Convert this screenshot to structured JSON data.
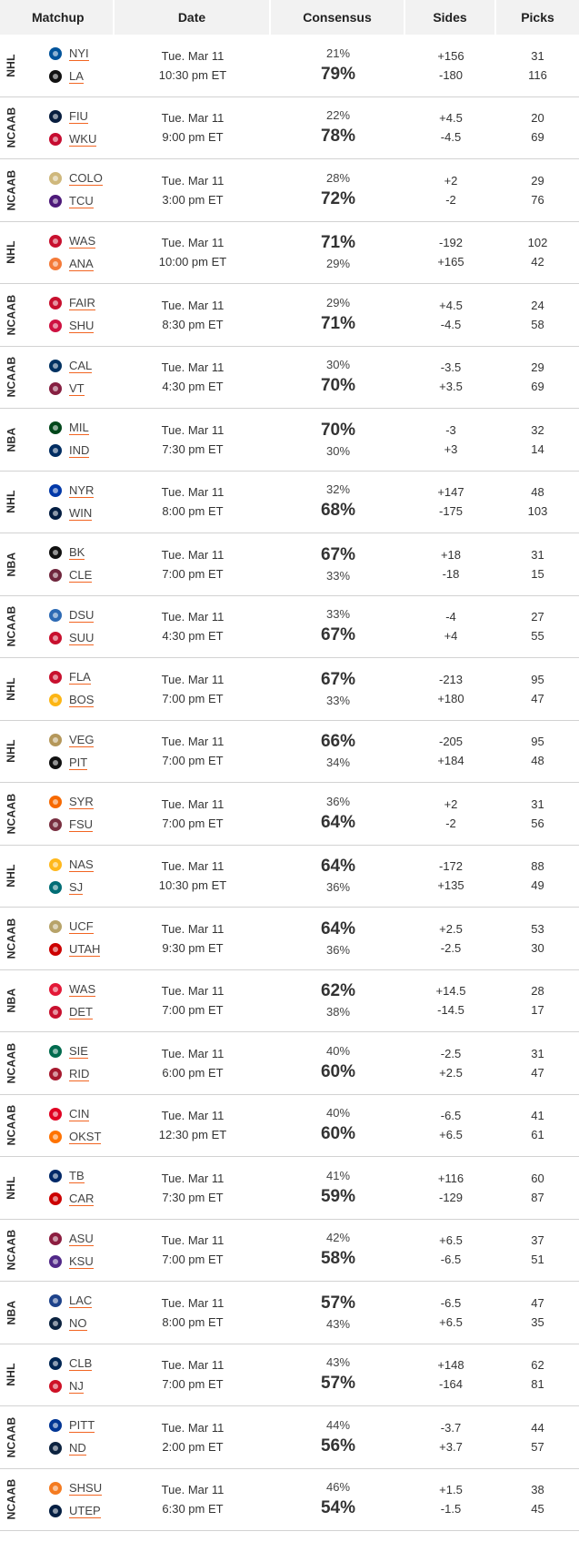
{
  "header": {
    "matchup": "Matchup",
    "date": "Date",
    "consensus": "Consensus",
    "sides": "Sides",
    "picks": "Picks"
  },
  "rows": [
    {
      "league": "NHL",
      "team1": {
        "abbr": "NYI",
        "logo": "islanders-logo",
        "color": "#00539b"
      },
      "team2": {
        "abbr": "LA",
        "logo": "kings-logo",
        "color": "#111111"
      },
      "day": "Tue. Mar 11",
      "time": "10:30 pm ET",
      "pct1": "21%",
      "pct2": "79%",
      "side1": "+156",
      "side2": "-180",
      "picks1": "31",
      "picks2": "116"
    },
    {
      "league": "NCAAB",
      "team1": {
        "abbr": "FIU",
        "logo": "fiu-logo",
        "color": "#081e3f"
      },
      "team2": {
        "abbr": "WKU",
        "logo": "wku-logo",
        "color": "#c60c30"
      },
      "day": "Tue. Mar 11",
      "time": "9:00 pm ET",
      "pct1": "22%",
      "pct2": "78%",
      "side1": "+4.5",
      "side2": "-4.5",
      "picks1": "20",
      "picks2": "69"
    },
    {
      "league": "NCAAB",
      "team1": {
        "abbr": "COLO",
        "logo": "colorado-logo",
        "color": "#cfb87c"
      },
      "team2": {
        "abbr": "TCU",
        "logo": "tcu-logo",
        "color": "#4d1979"
      },
      "day": "Tue. Mar 11",
      "time": "3:00 pm ET",
      "pct1": "28%",
      "pct2": "72%",
      "side1": "+2",
      "side2": "-2",
      "picks1": "29",
      "picks2": "76"
    },
    {
      "league": "NHL",
      "team1": {
        "abbr": "WAS",
        "logo": "capitals-logo",
        "color": "#c8102e"
      },
      "team2": {
        "abbr": "ANA",
        "logo": "ducks-logo",
        "color": "#f47a38"
      },
      "day": "Tue. Mar 11",
      "time": "10:00 pm ET",
      "pct1": "71%",
      "pct2": "29%",
      "side1": "-192",
      "side2": "+165",
      "picks1": "102",
      "picks2": "42"
    },
    {
      "league": "NCAAB",
      "team1": {
        "abbr": "FAIR",
        "logo": "fairfield-logo",
        "color": "#c8102e"
      },
      "team2": {
        "abbr": "SHU",
        "logo": "sacred-heart-logo",
        "color": "#ce1141"
      },
      "day": "Tue. Mar 11",
      "time": "8:30 pm ET",
      "pct1": "29%",
      "pct2": "71%",
      "side1": "+4.5",
      "side2": "-4.5",
      "picks1": "24",
      "picks2": "58"
    },
    {
      "league": "NCAAB",
      "team1": {
        "abbr": "CAL",
        "logo": "cal-logo",
        "color": "#003262"
      },
      "team2": {
        "abbr": "VT",
        "logo": "virginia-tech-logo",
        "color": "#861f41"
      },
      "day": "Tue. Mar 11",
      "time": "4:30 pm ET",
      "pct1": "30%",
      "pct2": "70%",
      "side1": "-3.5",
      "side2": "+3.5",
      "picks1": "29",
      "picks2": "69"
    },
    {
      "league": "NBA",
      "team1": {
        "abbr": "MIL",
        "logo": "bucks-logo",
        "color": "#00471b"
      },
      "team2": {
        "abbr": "IND",
        "logo": "pacers-logo",
        "color": "#002d62"
      },
      "day": "Tue. Mar 11",
      "time": "7:30 pm ET",
      "pct1": "70%",
      "pct2": "30%",
      "side1": "-3",
      "side2": "+3",
      "picks1": "32",
      "picks2": "14"
    },
    {
      "league": "NHL",
      "team1": {
        "abbr": "NYR",
        "logo": "rangers-logo",
        "color": "#0038a8"
      },
      "team2": {
        "abbr": "WIN",
        "logo": "jets-logo",
        "color": "#041e42"
      },
      "day": "Tue. Mar 11",
      "time": "8:00 pm ET",
      "pct1": "32%",
      "pct2": "68%",
      "side1": "+147",
      "side2": "-175",
      "picks1": "48",
      "picks2": "103"
    },
    {
      "league": "NBA",
      "team1": {
        "abbr": "BK",
        "logo": "nets-logo",
        "color": "#111111"
      },
      "team2": {
        "abbr": "CLE",
        "logo": "cavaliers-logo",
        "color": "#6f263d"
      },
      "day": "Tue. Mar 11",
      "time": "7:00 pm ET",
      "pct1": "67%",
      "pct2": "33%",
      "side1": "+18",
      "side2": "-18",
      "picks1": "31",
      "picks2": "15"
    },
    {
      "league": "NCAAB",
      "team1": {
        "abbr": "DSU",
        "logo": "dixie-state-logo",
        "color": "#2d6ab4"
      },
      "team2": {
        "abbr": "SUU",
        "logo": "southern-utah-logo",
        "color": "#c8102e"
      },
      "day": "Tue. Mar 11",
      "time": "4:30 pm ET",
      "pct1": "33%",
      "pct2": "67%",
      "side1": "-4",
      "side2": "+4",
      "picks1": "27",
      "picks2": "55"
    },
    {
      "league": "NHL",
      "team1": {
        "abbr": "FLA",
        "logo": "panthers-logo",
        "color": "#c8102e"
      },
      "team2": {
        "abbr": "BOS",
        "logo": "bruins-logo",
        "color": "#fcb514"
      },
      "day": "Tue. Mar 11",
      "time": "7:00 pm ET",
      "pct1": "67%",
      "pct2": "33%",
      "side1": "-213",
      "side2": "+180",
      "picks1": "95",
      "picks2": "47"
    },
    {
      "league": "NHL",
      "team1": {
        "abbr": "VEG",
        "logo": "golden-knights-logo",
        "color": "#b4975a"
      },
      "team2": {
        "abbr": "PIT",
        "logo": "penguins-logo",
        "color": "#111111"
      },
      "day": "Tue. Mar 11",
      "time": "7:00 pm ET",
      "pct1": "66%",
      "pct2": "34%",
      "side1": "-205",
      "side2": "+184",
      "picks1": "95",
      "picks2": "48"
    },
    {
      "league": "NCAAB",
      "team1": {
        "abbr": "SYR",
        "logo": "syracuse-logo",
        "color": "#f76900"
      },
      "team2": {
        "abbr": "FSU",
        "logo": "florida-state-logo",
        "color": "#782f40"
      },
      "day": "Tue. Mar 11",
      "time": "7:00 pm ET",
      "pct1": "36%",
      "pct2": "64%",
      "side1": "+2",
      "side2": "-2",
      "picks1": "31",
      "picks2": "56"
    },
    {
      "league": "NHL",
      "team1": {
        "abbr": "NAS",
        "logo": "predators-logo",
        "color": "#ffb81c"
      },
      "team2": {
        "abbr": "SJ",
        "logo": "sharks-logo",
        "color": "#006d75"
      },
      "day": "Tue. Mar 11",
      "time": "10:30 pm ET",
      "pct1": "64%",
      "pct2": "36%",
      "side1": "-172",
      "side2": "+135",
      "picks1": "88",
      "picks2": "49"
    },
    {
      "league": "NCAAB",
      "team1": {
        "abbr": "UCF",
        "logo": "ucf-logo",
        "color": "#b7a369"
      },
      "team2": {
        "abbr": "UTAH",
        "logo": "utah-logo",
        "color": "#cc0000"
      },
      "day": "Tue. Mar 11",
      "time": "9:30 pm ET",
      "pct1": "64%",
      "pct2": "36%",
      "side1": "+2.5",
      "side2": "-2.5",
      "picks1": "53",
      "picks2": "30"
    },
    {
      "league": "NBA",
      "team1": {
        "abbr": "WAS",
        "logo": "wizards-logo",
        "color": "#e31837"
      },
      "team2": {
        "abbr": "DET",
        "logo": "pistons-logo",
        "color": "#c8102e"
      },
      "day": "Tue. Mar 11",
      "time": "7:00 pm ET",
      "pct1": "62%",
      "pct2": "38%",
      "side1": "+14.5",
      "side2": "-14.5",
      "picks1": "28",
      "picks2": "17"
    },
    {
      "league": "NCAAB",
      "team1": {
        "abbr": "SIE",
        "logo": "siena-logo",
        "color": "#006b4e"
      },
      "team2": {
        "abbr": "RID",
        "logo": "rider-logo",
        "color": "#a6192e"
      },
      "day": "Tue. Mar 11",
      "time": "6:00 pm ET",
      "pct1": "40%",
      "pct2": "60%",
      "side1": "-2.5",
      "side2": "+2.5",
      "picks1": "31",
      "picks2": "47"
    },
    {
      "league": "NCAAB",
      "team1": {
        "abbr": "CIN",
        "logo": "cincinnati-logo",
        "color": "#e00122"
      },
      "team2": {
        "abbr": "OKST",
        "logo": "oklahoma-state-logo",
        "color": "#ff7300"
      },
      "day": "Tue. Mar 11",
      "time": "12:30 pm ET",
      "pct1": "40%",
      "pct2": "60%",
      "side1": "-6.5",
      "side2": "+6.5",
      "picks1": "41",
      "picks2": "61"
    },
    {
      "league": "NHL",
      "team1": {
        "abbr": "TB",
        "logo": "lightning-logo",
        "color": "#002868"
      },
      "team2": {
        "abbr": "CAR",
        "logo": "hurricanes-logo",
        "color": "#cc0000"
      },
      "day": "Tue. Mar 11",
      "time": "7:30 pm ET",
      "pct1": "41%",
      "pct2": "59%",
      "side1": "+116",
      "side2": "-129",
      "picks1": "60",
      "picks2": "87"
    },
    {
      "league": "NCAAB",
      "team1": {
        "abbr": "ASU",
        "logo": "arizona-state-logo",
        "color": "#8c1d40"
      },
      "team2": {
        "abbr": "KSU",
        "logo": "kansas-state-logo",
        "color": "#512888"
      },
      "day": "Tue. Mar 11",
      "time": "7:00 pm ET",
      "pct1": "42%",
      "pct2": "58%",
      "side1": "+6.5",
      "side2": "-6.5",
      "picks1": "37",
      "picks2": "51"
    },
    {
      "league": "NBA",
      "team1": {
        "abbr": "LAC",
        "logo": "clippers-logo",
        "color": "#1d428a"
      },
      "team2": {
        "abbr": "NO",
        "logo": "pelicans-logo",
        "color": "#0c2340"
      },
      "day": "Tue. Mar 11",
      "time": "8:00 pm ET",
      "pct1": "57%",
      "pct2": "43%",
      "side1": "-6.5",
      "side2": "+6.5",
      "picks1": "47",
      "picks2": "35"
    },
    {
      "league": "NHL",
      "team1": {
        "abbr": "CLB",
        "logo": "blue-jackets-logo",
        "color": "#002654"
      },
      "team2": {
        "abbr": "NJ",
        "logo": "devils-logo",
        "color": "#ce1126"
      },
      "day": "Tue. Mar 11",
      "time": "7:00 pm ET",
      "pct1": "43%",
      "pct2": "57%",
      "side1": "+148",
      "side2": "-164",
      "picks1": "62",
      "picks2": "81"
    },
    {
      "league": "NCAAB",
      "team1": {
        "abbr": "PITT",
        "logo": "pitt-logo",
        "color": "#003594"
      },
      "team2": {
        "abbr": "ND",
        "logo": "notre-dame-logo",
        "color": "#0c2340"
      },
      "day": "Tue. Mar 11",
      "time": "2:00 pm ET",
      "pct1": "44%",
      "pct2": "56%",
      "side1": "-3.7",
      "side2": "+3.7",
      "picks1": "44",
      "picks2": "57"
    },
    {
      "league": "NCAAB",
      "team1": {
        "abbr": "SHSU",
        "logo": "sam-houston-logo",
        "color": "#f47b20"
      },
      "team2": {
        "abbr": "UTEP",
        "logo": "utep-logo",
        "color": "#041e42"
      },
      "day": "Tue. Mar 11",
      "time": "6:30 pm ET",
      "pct1": "46%",
      "pct2": "54%",
      "side1": "+1.5",
      "side2": "-1.5",
      "picks1": "38",
      "picks2": "45"
    }
  ]
}
